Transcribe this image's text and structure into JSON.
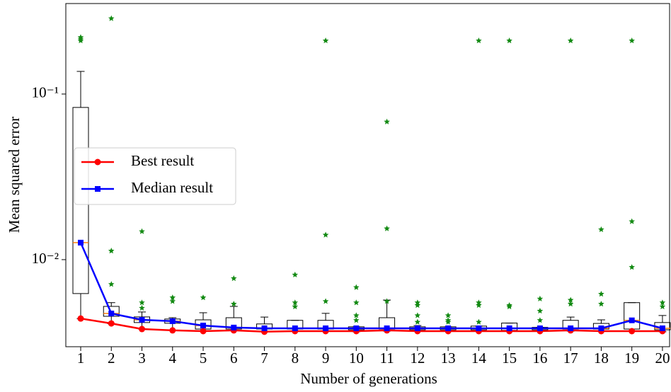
{
  "chart_data": {
    "type": "box",
    "xlabel": "Number of generations",
    "ylabel": "Mean squared error",
    "categories": [
      "1",
      "2",
      "3",
      "4",
      "5",
      "6",
      "7",
      "8",
      "9",
      "10",
      "11",
      "12",
      "13",
      "14",
      "15",
      "16",
      "17",
      "18",
      "19",
      "20"
    ],
    "ylim": [
      0.00298,
      0.352
    ],
    "yscale": "log",
    "yticks": [
      {
        "value": 0.01,
        "label": "10⁻²"
      },
      {
        "value": 0.1,
        "label": "10⁻¹"
      }
    ],
    "legend": "center left",
    "box_color": "#000000",
    "median_color": "#ff7f0e",
    "flier_color": "#138a13",
    "boxes": [
      {
        "q1": 0.00624,
        "med": 0.01267,
        "q3": 0.083,
        "whislo": 0.0044,
        "whishi": 0.137,
        "fliers": [
          0.22,
          0.215,
          0.21
        ]
      },
      {
        "q1": 0.00455,
        "med": 0.00473,
        "q3": 0.00522,
        "whislo": 0.0041,
        "whishi": 0.0055,
        "fliers": [
          0.286,
          0.0113,
          0.0071
        ]
      },
      {
        "q1": 0.00417,
        "med": 0.00433,
        "q3": 0.00451,
        "whislo": 0.00381,
        "whishi": 0.00483,
        "fliers": [
          0.0148,
          0.0055,
          0.0051
        ]
      },
      {
        "q1": 0.00413,
        "med": 0.00425,
        "q3": 0.00438,
        "whislo": 0.00374,
        "whishi": 0.00446,
        "fliers": [
          0.0059,
          0.0056
        ]
      },
      {
        "q1": 0.00381,
        "med": 0.004,
        "q3": 0.00433,
        "whislo": 0.0037,
        "whishi": 0.00478,
        "fliers": [
          0.0059
        ]
      },
      {
        "q1": 0.00381,
        "med": 0.00389,
        "q3": 0.00446,
        "whislo": 0.00374,
        "whishi": 0.00522,
        "fliers": [
          0.0077,
          0.0054
        ]
      },
      {
        "q1": 0.00381,
        "med": 0.00385,
        "q3": 0.00409,
        "whislo": 0.00367,
        "whishi": 0.0045,
        "fliers": []
      },
      {
        "q1": 0.00381,
        "med": 0.00385,
        "q3": 0.0043,
        "whislo": 0.0037,
        "whishi": 0.0043,
        "fliers": [
          0.0081,
          0.0055,
          0.0052
        ]
      },
      {
        "q1": 0.00381,
        "med": 0.00385,
        "q3": 0.0043,
        "whislo": 0.0037,
        "whishi": 0.00474,
        "fliers": [
          0.21,
          0.0141,
          0.0056
        ]
      },
      {
        "q1": 0.00377,
        "med": 0.00385,
        "q3": 0.00393,
        "whislo": 0.00367,
        "whishi": 0.00393,
        "fliers": [
          0.0068,
          0.0055,
          0.0046,
          0.0043
        ]
      },
      {
        "q1": 0.00381,
        "med": 0.00385,
        "q3": 0.00446,
        "whislo": 0.0037,
        "whishi": 0.0057,
        "fliers": [
          0.068,
          0.0154,
          0.0056
        ]
      },
      {
        "q1": 0.00377,
        "med": 0.00385,
        "q3": 0.00393,
        "whislo": 0.0037,
        "whishi": 0.004,
        "fliers": [
          0.0055,
          0.0053,
          0.0046,
          0.0042
        ]
      },
      {
        "q1": 0.00377,
        "med": 0.00385,
        "q3": 0.00393,
        "whislo": 0.0037,
        "whishi": 0.00393,
        "fliers": [
          0.0046,
          0.0043,
          0.0042
        ]
      },
      {
        "q1": 0.00377,
        "med": 0.00385,
        "q3": 0.00397,
        "whislo": 0.0037,
        "whishi": 0.00397,
        "fliers": [
          0.21,
          0.0055,
          0.0053,
          0.0042
        ]
      },
      {
        "q1": 0.00374,
        "med": 0.00385,
        "q3": 0.00414,
        "whislo": 0.0037,
        "whishi": 0.00414,
        "fliers": [
          0.21,
          0.0053,
          0.0052
        ]
      },
      {
        "q1": 0.00377,
        "med": 0.00385,
        "q3": 0.0039,
        "whislo": 0.0037,
        "whishi": 0.0039,
        "fliers": [
          0.0058,
          0.0049,
          0.0043
        ]
      },
      {
        "q1": 0.00381,
        "med": 0.00385,
        "q3": 0.0043,
        "whislo": 0.0037,
        "whishi": 0.0045,
        "fliers": [
          0.21,
          0.0057,
          0.0054
        ]
      },
      {
        "q1": 0.00381,
        "med": 0.00385,
        "q3": 0.00412,
        "whislo": 0.0037,
        "whishi": 0.00433,
        "fliers": [
          0.0152,
          0.0062,
          0.0054
        ]
      },
      {
        "q1": 0.00381,
        "med": 0.0043,
        "q3": 0.0055,
        "whislo": 0.0037,
        "whishi": 0.0055,
        "fliers": [
          0.21,
          0.017,
          0.009
        ]
      },
      {
        "q1": 0.00377,
        "med": 0.00385,
        "q3": 0.00417,
        "whislo": 0.00367,
        "whishi": 0.0046,
        "fliers": [
          0.0055,
          0.0052
        ]
      }
    ],
    "series": [
      {
        "name": "Best result",
        "color": "#ff0000",
        "marker": "circle",
        "values": [
          0.00441,
          0.00412,
          0.00381,
          0.00374,
          0.0037,
          0.00374,
          0.00367,
          0.0037,
          0.0037,
          0.0037,
          0.00374,
          0.0037,
          0.0037,
          0.0037,
          0.0037,
          0.0037,
          0.00374,
          0.0037,
          0.0037,
          0.0037
        ]
      },
      {
        "name": "Median result",
        "color": "#0000ff",
        "marker": "square",
        "values": [
          0.01267,
          0.00473,
          0.00433,
          0.00425,
          0.004,
          0.00389,
          0.00385,
          0.00385,
          0.00385,
          0.00385,
          0.00385,
          0.00385,
          0.00385,
          0.00385,
          0.00385,
          0.00385,
          0.00385,
          0.00385,
          0.0043,
          0.00385
        ]
      }
    ]
  }
}
